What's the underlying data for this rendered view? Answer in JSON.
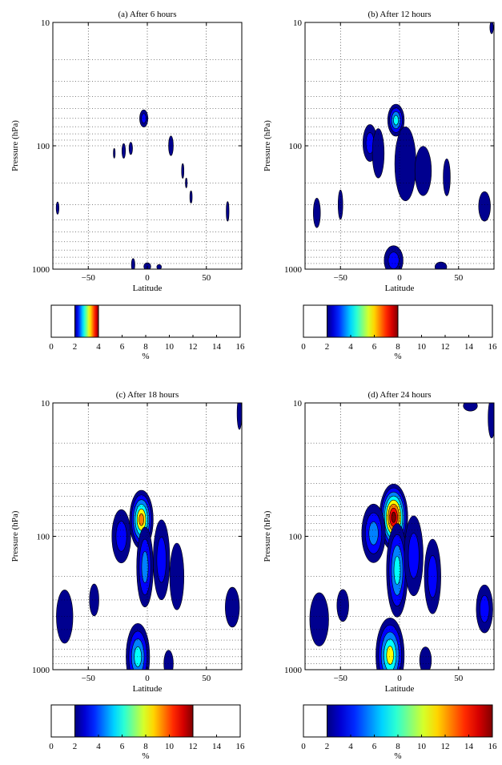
{
  "chart_data": [
    {
      "type": "heatmap",
      "title": "(a) After 6 hours",
      "xlabel": "Latitude",
      "ylabel": "Pressure (hPa)",
      "xlim": [
        -80,
        80
      ],
      "ylim": [
        1000,
        10
      ],
      "yscale": "log",
      "grid": true,
      "xticks": [
        -50,
        0,
        50
      ],
      "yticks": [
        1000,
        100,
        10
      ],
      "xtick_labels": [
        "−50",
        "0",
        "50"
      ],
      "ytick_labels": [
        "1000",
        "100",
        "10"
      ],
      "features": [
        {
          "lat": -3,
          "p": 60,
          "r_lat": 3.5,
          "r_logp": 0.07,
          "level": 4
        },
        {
          "lat": -20,
          "p": 110,
          "r_lat": 1.5,
          "r_logp": 0.06,
          "level": 2
        },
        {
          "lat": -14,
          "p": 105,
          "r_lat": 1.5,
          "r_logp": 0.05,
          "level": 2
        },
        {
          "lat": -28,
          "p": 115,
          "r_lat": 0.8,
          "r_logp": 0.04,
          "level": 2
        },
        {
          "lat": 20,
          "p": 100,
          "r_lat": 2,
          "r_logp": 0.08,
          "level": 2
        },
        {
          "lat": 30,
          "p": 160,
          "r_lat": 1,
          "r_logp": 0.06,
          "level": 2
        },
        {
          "lat": 37,
          "p": 260,
          "r_lat": 1,
          "r_logp": 0.05,
          "level": 2
        },
        {
          "lat": 33,
          "p": 200,
          "r_lat": 0.8,
          "r_logp": 0.04,
          "level": 2
        },
        {
          "lat": 68,
          "p": 340,
          "r_lat": 1.2,
          "r_logp": 0.08,
          "level": 2
        },
        {
          "lat": -76,
          "p": 320,
          "r_lat": 1.2,
          "r_logp": 0.05,
          "level": 2
        },
        {
          "lat": -12,
          "p": 920,
          "r_lat": 1.5,
          "r_logp": 0.05,
          "level": 2
        },
        {
          "lat": 0,
          "p": 950,
          "r_lat": 3,
          "r_logp": 0.03,
          "level": 2
        },
        {
          "lat": 10,
          "p": 960,
          "r_lat": 2,
          "r_logp": 0.02,
          "level": 2
        }
      ]
    },
    {
      "type": "heatmap",
      "title": "(b) After 12 hours",
      "xlabel": "Latitude",
      "ylabel": "Pressure (hPa)",
      "xlim": [
        -80,
        80
      ],
      "ylim": [
        1000,
        10
      ],
      "yscale": "log",
      "grid": true,
      "xticks": [
        -50,
        0,
        50
      ],
      "yticks": [
        1000,
        100,
        10
      ],
      "xtick_labels": [
        "−50",
        "0",
        "50"
      ],
      "ytick_labels": [
        "1000",
        "100",
        "10"
      ],
      "features": [
        {
          "lat": -3,
          "p": 62,
          "r_lat": 7,
          "r_logp": 0.13,
          "level": 8
        },
        {
          "lat": -25,
          "p": 95,
          "r_lat": 6,
          "r_logp": 0.15,
          "level": 5
        },
        {
          "lat": -18,
          "p": 115,
          "r_lat": 5,
          "r_logp": 0.2,
          "level": 3
        },
        {
          "lat": 5,
          "p": 140,
          "r_lat": 9,
          "r_logp": 0.3,
          "level": 3
        },
        {
          "lat": 20,
          "p": 160,
          "r_lat": 7,
          "r_logp": 0.2,
          "level": 3
        },
        {
          "lat": 40,
          "p": 180,
          "r_lat": 3,
          "r_logp": 0.15,
          "level": 2
        },
        {
          "lat": -5,
          "p": 850,
          "r_lat": 8,
          "r_logp": 0.12,
          "level": 4
        },
        {
          "lat": 35,
          "p": 960,
          "r_lat": 5,
          "r_logp": 0.04,
          "level": 3
        },
        {
          "lat": -70,
          "p": 350,
          "r_lat": 3,
          "r_logp": 0.12,
          "level": 2
        },
        {
          "lat": -50,
          "p": 300,
          "r_lat": 2,
          "r_logp": 0.12,
          "level": 2
        },
        {
          "lat": 72,
          "p": 310,
          "r_lat": 5,
          "r_logp": 0.12,
          "level": 3
        },
        {
          "lat": 78,
          "p": 11,
          "r_lat": 1.5,
          "r_logp": 0.05,
          "level": 2
        }
      ]
    },
    {
      "type": "heatmap",
      "title": "(c) After 18 hours",
      "xlabel": "Latitude",
      "ylabel": "Pressure (hPa)",
      "xlim": [
        -80,
        80
      ],
      "ylim": [
        1000,
        10
      ],
      "yscale": "log",
      "grid": true,
      "xticks": [
        -50,
        0,
        50
      ],
      "yticks": [
        1000,
        100,
        10
      ],
      "xtick_labels": [
        "−50",
        "0",
        "50"
      ],
      "ytick_labels": [
        "1000",
        "100",
        "10"
      ],
      "features": [
        {
          "lat": -5,
          "p": 75,
          "r_lat": 10,
          "r_logp": 0.22,
          "level": 12
        },
        {
          "lat": -22,
          "p": 100,
          "r_lat": 8,
          "r_logp": 0.2,
          "level": 5
        },
        {
          "lat": -2,
          "p": 170,
          "r_lat": 7,
          "r_logp": 0.3,
          "level": 6
        },
        {
          "lat": 12,
          "p": 150,
          "r_lat": 7,
          "r_logp": 0.3,
          "level": 4
        },
        {
          "lat": 25,
          "p": 200,
          "r_lat": 6,
          "r_logp": 0.25,
          "level": 3
        },
        {
          "lat": -8,
          "p": 800,
          "r_lat": 10,
          "r_logp": 0.25,
          "level": 8
        },
        {
          "lat": 18,
          "p": 900,
          "r_lat": 4,
          "r_logp": 0.1,
          "level": 3
        },
        {
          "lat": -70,
          "p": 400,
          "r_lat": 7,
          "r_logp": 0.2,
          "level": 3
        },
        {
          "lat": -45,
          "p": 300,
          "r_lat": 4,
          "r_logp": 0.12,
          "level": 2
        },
        {
          "lat": 72,
          "p": 340,
          "r_lat": 6,
          "r_logp": 0.15,
          "level": 3
        },
        {
          "lat": 78,
          "p": 12,
          "r_lat": 2,
          "r_logp": 0.12,
          "level": 2
        }
      ]
    },
    {
      "type": "heatmap",
      "title": "(d) After 24 hours",
      "xlabel": "Latitude",
      "ylabel": "Pressure (hPa)",
      "xlim": [
        -80,
        80
      ],
      "ylim": [
        1000,
        10
      ],
      "yscale": "log",
      "grid": true,
      "xticks": [
        -50,
        0,
        50
      ],
      "yticks": [
        1000,
        100,
        10
      ],
      "xtick_labels": [
        "−50",
        "0",
        "50"
      ],
      "ytick_labels": [
        "1000",
        "100",
        "10"
      ],
      "features": [
        {
          "lat": -5,
          "p": 72,
          "r_lat": 12,
          "r_logp": 0.25,
          "level": 16
        },
        {
          "lat": -22,
          "p": 95,
          "r_lat": 10,
          "r_logp": 0.22,
          "level": 6
        },
        {
          "lat": -2,
          "p": 180,
          "r_lat": 9,
          "r_logp": 0.35,
          "level": 8
        },
        {
          "lat": 12,
          "p": 140,
          "r_lat": 8,
          "r_logp": 0.3,
          "level": 5
        },
        {
          "lat": 28,
          "p": 200,
          "r_lat": 7,
          "r_logp": 0.28,
          "level": 4
        },
        {
          "lat": -8,
          "p": 780,
          "r_lat": 12,
          "r_logp": 0.28,
          "level": 10
        },
        {
          "lat": 22,
          "p": 850,
          "r_lat": 5,
          "r_logp": 0.1,
          "level": 3
        },
        {
          "lat": -68,
          "p": 420,
          "r_lat": 8,
          "r_logp": 0.2,
          "level": 3
        },
        {
          "lat": -48,
          "p": 330,
          "r_lat": 5,
          "r_logp": 0.12,
          "level": 3
        },
        {
          "lat": 72,
          "p": 350,
          "r_lat": 7,
          "r_logp": 0.18,
          "level": 4
        },
        {
          "lat": 78,
          "p": 13,
          "r_lat": 3,
          "r_logp": 0.15,
          "level": 2
        },
        {
          "lat": 60,
          "p": 10.5,
          "r_lat": 6,
          "r_logp": 0.04,
          "level": 2
        }
      ]
    }
  ],
  "colorbars": [
    {
      "min": 2,
      "max": 4,
      "ticks": [
        0,
        2,
        4,
        6,
        8,
        10,
        12,
        14,
        16
      ],
      "unit": "%"
    },
    {
      "min": 2,
      "max": 8,
      "ticks": [
        0,
        2,
        4,
        6,
        8,
        10,
        12,
        14,
        16
      ],
      "unit": "%"
    },
    {
      "min": 2,
      "max": 12,
      "ticks": [
        0,
        2,
        4,
        6,
        8,
        10,
        12,
        14,
        16
      ],
      "unit": "%"
    },
    {
      "min": 2,
      "max": 16,
      "ticks": [
        0,
        2,
        4,
        6,
        8,
        10,
        12,
        14,
        16
      ],
      "unit": "%"
    }
  ],
  "colormap": [
    "#00008f",
    "#0000ff",
    "#0080ff",
    "#00ffff",
    "#80ff80",
    "#ffff00",
    "#ff8000",
    "#ff0000",
    "#800000"
  ]
}
